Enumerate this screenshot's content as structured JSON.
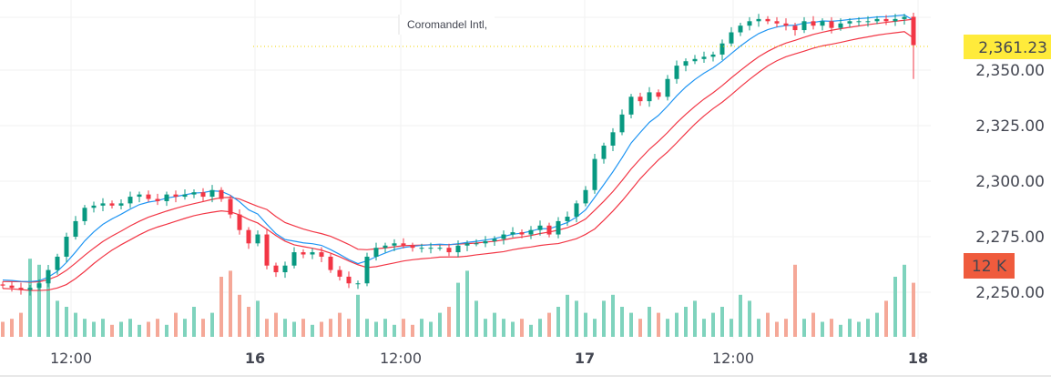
{
  "title": "Coromandel Intl,",
  "colors": {
    "up": "#089981",
    "down": "#f23645",
    "ema": "#2196f3",
    "band": "#f23645",
    "last": "#ffeb3b",
    "vol_badge": "#ef5b3d"
  },
  "chart_data": {
    "type": "candlestick",
    "price_axis": {
      "ticks": [
        "2,350.00",
        "2,325.00",
        "2,300.00",
        "2,275.00",
        "2,250.00"
      ],
      "tick_values": [
        2350,
        2325,
        2300,
        2275,
        2250
      ]
    },
    "time_axis": {
      "ticks": [
        "12:00",
        "16",
        "12:00",
        "17",
        "12:00",
        "18"
      ]
    },
    "last_price": 2361.23,
    "last_price_label": "2,361.23",
    "volume_label": "12 K",
    "volume_label_value": 12,
    "close": [
      2253,
      2252,
      2251,
      2252,
      2254,
      2260,
      2266,
      2275,
      2282,
      2288,
      2289,
      2290,
      2289,
      2290,
      2293,
      2294,
      2292,
      2291,
      2294,
      2293,
      2294,
      2295,
      2293,
      2296,
      2292,
      2285,
      2278,
      2272,
      2276,
      2262,
      2259,
      2262,
      2268,
      2267,
      2268,
      2266,
      2260,
      2257,
      2254,
      2254,
      2266,
      2270,
      2271,
      2272,
      2271,
      2270,
      2270,
      2270,
      2270,
      2268,
      2271,
      2272,
      2272,
      2273,
      2274,
      2276,
      2277,
      2276,
      2278,
      2280,
      2276,
      2282,
      2284,
      2290,
      2296,
      2310,
      2316,
      2322,
      2330,
      2338,
      2336,
      2340,
      2338,
      2346,
      2352,
      2354,
      2355,
      2356,
      2357,
      2362,
      2367,
      2370,
      2372,
      2373,
      2372,
      2371,
      2370,
      2368,
      2372,
      2370,
      2372,
      2369,
      2371,
      2372,
      2372,
      2372,
      2373,
      2372,
      2373,
      2374,
      2361.23
    ],
    "volume_k": [
      2.5,
      3,
      4,
      13,
      12,
      9,
      6,
      5,
      4,
      3,
      2.5,
      3,
      2,
      2.5,
      3,
      2,
      2.5,
      3,
      2,
      4,
      3,
      5,
      3,
      4,
      10,
      11,
      7,
      5,
      6,
      3,
      4,
      3,
      2.5,
      3,
      2,
      2.5,
      3,
      4,
      3,
      7,
      3,
      2.5,
      3,
      2,
      3,
      2,
      3,
      2.5,
      4,
      5,
      9,
      11,
      6,
      3,
      4,
      3,
      2.5,
      3,
      2,
      3,
      4,
      5,
      7,
      6,
      4,
      3,
      6,
      7,
      5,
      4,
      3,
      5,
      4,
      3,
      4,
      5,
      6,
      3,
      4,
      5,
      3,
      7,
      6,
      3,
      4,
      2.5,
      3,
      12,
      3,
      4,
      2.5,
      3,
      2,
      3,
      2.5,
      3,
      4,
      6,
      10,
      12,
      9
    ]
  }
}
